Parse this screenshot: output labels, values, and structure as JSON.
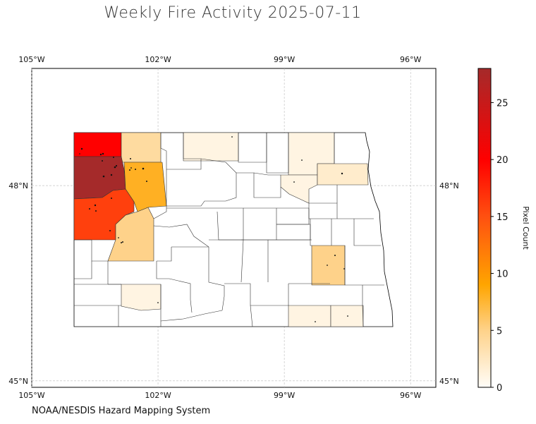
{
  "title": "Weekly Fire Activity 2025-07-11",
  "credit": "NOAA/NESDIS Hazard Mapping System",
  "map": {
    "lon_range": [
      -105,
      -95.4
    ],
    "lat_range": [
      44.9,
      49.8
    ],
    "lon_ticks": [
      {
        "value": -105,
        "label": "105°W"
      },
      {
        "value": -102,
        "label": "102°W"
      },
      {
        "value": -99,
        "label": "99°W"
      },
      {
        "value": -96,
        "label": "96°W"
      }
    ],
    "lat_ticks": [
      {
        "value": 48,
        "label": "48°N"
      },
      {
        "value": 45,
        "label": "45°N"
      }
    ],
    "grid": true
  },
  "colorbar": {
    "label": "Pixel Count",
    "min": 0,
    "max": 28,
    "ticks": [
      0,
      5,
      10,
      15,
      20,
      25
    ],
    "stops": [
      {
        "v": 0,
        "color": "#fffdf8"
      },
      {
        "v": 5,
        "color": "#fed28a"
      },
      {
        "v": 9,
        "color": "#ffa500"
      },
      {
        "v": 15,
        "color": "#ff5010"
      },
      {
        "v": 20,
        "color": "#ff0000"
      },
      {
        "v": 28,
        "color": "#a52a2a"
      }
    ]
  },
  "counties": [
    {
      "id": "divide",
      "value": 20
    },
    {
      "id": "burke",
      "value": 4
    },
    {
      "id": "williams",
      "value": 28
    },
    {
      "id": "mountrail",
      "value": 8
    },
    {
      "id": "mckenzie",
      "value": 16
    },
    {
      "id": "dunn",
      "value": 5
    },
    {
      "id": "ward-north",
      "value": 1
    },
    {
      "id": "bottineau",
      "value": 1
    },
    {
      "id": "mchenry-north",
      "value": 1
    },
    {
      "id": "cavalier",
      "value": 2
    },
    {
      "id": "stutsman",
      "value": 5
    },
    {
      "id": "hettinger",
      "value": 1
    },
    {
      "id": "dickey",
      "value": 1
    },
    {
      "id": "sargent",
      "value": 1
    }
  ]
}
